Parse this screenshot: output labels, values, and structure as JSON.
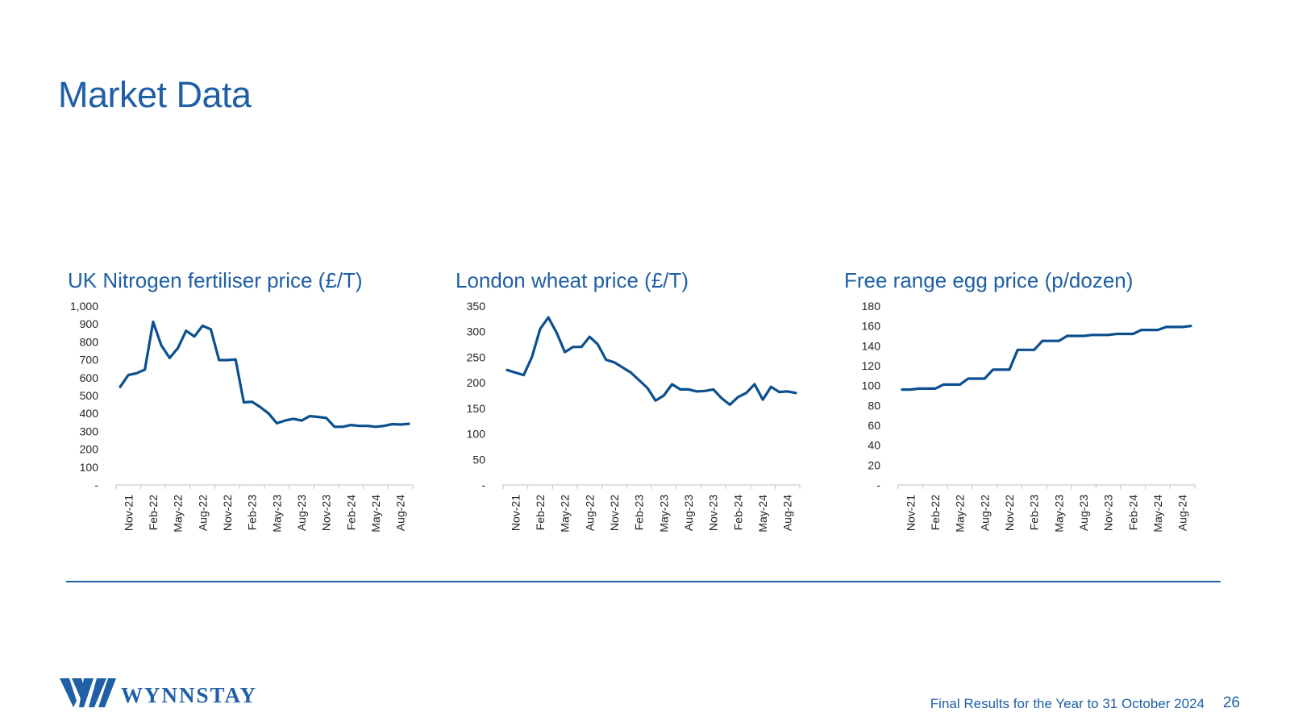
{
  "page": {
    "title": "Market Data",
    "footer_text": "Final Results for the Year to 31 October 2024",
    "page_number": "26",
    "logo_text": "WYNNSTAY"
  },
  "colors": {
    "accent": "#1f5fa5",
    "line": "#0b4f8f",
    "axis": "#bfbfbf"
  },
  "chart_data": [
    {
      "type": "line",
      "title": "UK Nitrogen fertiliser price (£/T)",
      "xlabel": "",
      "ylabel": "",
      "y_ticks": [
        0,
        100,
        200,
        300,
        400,
        500,
        600,
        700,
        800,
        900,
        1000
      ],
      "y_tick_labels": [
        "-",
        "100",
        "200",
        "300",
        "400",
        "500",
        "600",
        "700",
        "800",
        "900",
        "1,000"
      ],
      "ylim": [
        0,
        1000
      ],
      "x_tick_labels": [
        "Nov-21",
        "Feb-22",
        "May-22",
        "Aug-22",
        "Nov-22",
        "Feb-23",
        "May-23",
        "Aug-23",
        "Nov-23",
        "Feb-24",
        "May-24",
        "Aug-24"
      ],
      "grid": false,
      "values": [
        548,
        615,
        625,
        645,
        912,
        780,
        710,
        765,
        862,
        830,
        890,
        870,
        698,
        698,
        702,
        462,
        465,
        435,
        400,
        345,
        360,
        370,
        360,
        385,
        380,
        375,
        325,
        325,
        335,
        330,
        330,
        325,
        330,
        340,
        338,
        342
      ]
    },
    {
      "type": "line",
      "title": "London wheat price (£/T)",
      "xlabel": "",
      "ylabel": "",
      "y_ticks": [
        0,
        50,
        100,
        150,
        200,
        250,
        300,
        350
      ],
      "y_tick_labels": [
        "-",
        "50",
        "100",
        "150",
        "200",
        "250",
        "300",
        "350"
      ],
      "ylim": [
        0,
        350
      ],
      "x_tick_labels": [
        "Nov-21",
        "Feb-22",
        "May-22",
        "Aug-22",
        "Nov-22",
        "Feb-23",
        "May-23",
        "Aug-23",
        "Nov-23",
        "Feb-24",
        "May-24",
        "Aug-24"
      ],
      "grid": false,
      "values": [
        225,
        220,
        215,
        250,
        305,
        328,
        298,
        260,
        270,
        270,
        290,
        275,
        245,
        240,
        230,
        220,
        205,
        190,
        165,
        175,
        197,
        187,
        187,
        183,
        184,
        187,
        170,
        157,
        172,
        180,
        197,
        167,
        192,
        182,
        183,
        180
      ]
    },
    {
      "type": "line",
      "title": "Free range egg price (p/dozen)",
      "xlabel": "",
      "ylabel": "",
      "y_ticks": [
        0,
        20,
        40,
        60,
        80,
        100,
        120,
        140,
        160,
        180
      ],
      "y_tick_labels": [
        "-",
        "20",
        "40",
        "60",
        "80",
        "100",
        "120",
        "140",
        "160",
        "180"
      ],
      "ylim": [
        0,
        180
      ],
      "x_tick_labels": [
        "Nov-21",
        "Feb-22",
        "May-22",
        "Aug-22",
        "Nov-22",
        "Feb-23",
        "May-23",
        "Aug-23",
        "Nov-23",
        "Feb-24",
        "May-24",
        "Aug-24"
      ],
      "grid": false,
      "values": [
        96,
        96,
        97,
        97,
        97,
        101,
        101,
        101,
        107,
        107,
        107,
        116,
        116,
        116,
        136,
        136,
        136,
        145,
        145,
        145,
        150,
        150,
        150,
        151,
        151,
        151,
        152,
        152,
        152,
        156,
        156,
        156,
        159,
        159,
        159,
        160
      ]
    }
  ]
}
